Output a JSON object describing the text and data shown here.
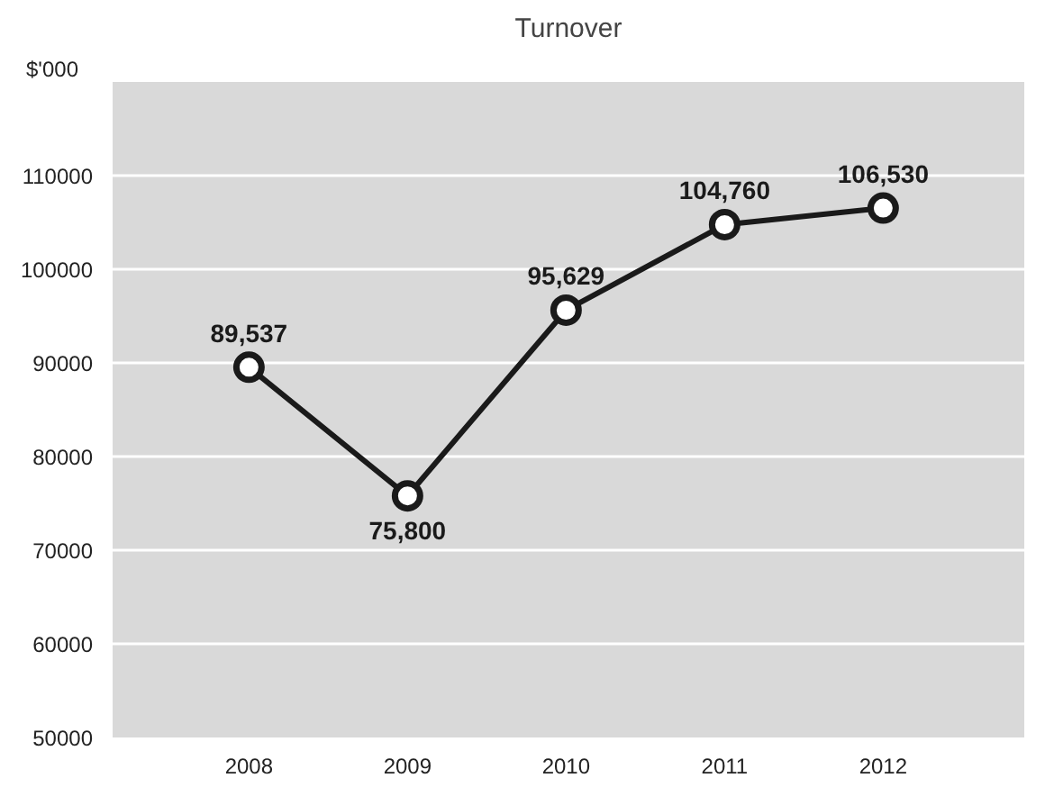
{
  "chart_data": {
    "type": "line",
    "title": "Turnover",
    "ylabel": "$'000",
    "categories": [
      "2008",
      "2009",
      "2010",
      "2011",
      "2012"
    ],
    "series": [
      {
        "color": "#1a1a1a",
        "values": [
          89537,
          75800,
          95629,
          104760,
          106530
        ],
        "value_labels": [
          "89,537",
          "75,800",
          "95,629",
          "104,760",
          "106,530"
        ]
      }
    ],
    "ylim": [
      50000,
      120000
    ],
    "yticks": [
      50000,
      60000,
      70000,
      80000,
      90000,
      100000,
      110000
    ],
    "grid": "y",
    "marker": "circle",
    "line_style": "solid"
  }
}
